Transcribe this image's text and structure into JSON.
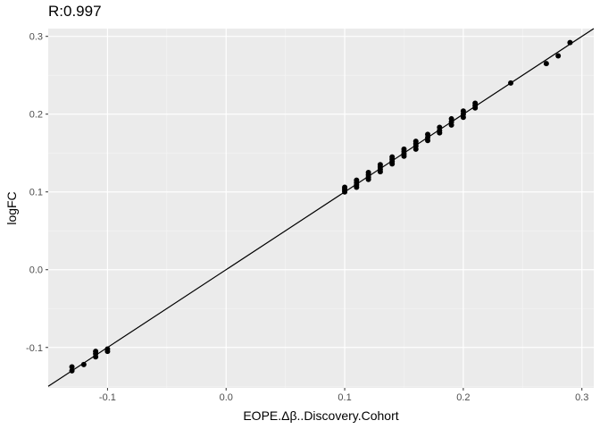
{
  "chart_data": {
    "type": "scatter",
    "title": "R:0.997",
    "xlabel": "EOPE.Δβ..Discovery.Cohort",
    "ylabel": "logFC",
    "xlim": [
      -0.15,
      0.31
    ],
    "ylim": [
      -0.152,
      0.31
    ],
    "x_ticks": [
      -0.1,
      0.0,
      0.1,
      0.2,
      0.3
    ],
    "x_tick_labels": [
      "-0.1",
      "0.0",
      "0.1",
      "0.2",
      "0.3"
    ],
    "y_ticks": [
      -0.1,
      0.0,
      0.1,
      0.2,
      0.3
    ],
    "y_tick_labels": [
      "-0.1",
      "0.0",
      "0.1",
      "0.2",
      "0.3"
    ],
    "grid": true,
    "background": "#ebebeb",
    "point_color": "#000000",
    "fit_line": {
      "slope": 1.0,
      "intercept": 0.0,
      "color": "#000000"
    },
    "points": [
      {
        "x": -0.13,
        "y": -0.125
      },
      {
        "x": -0.13,
        "y": -0.13
      },
      {
        "x": -0.12,
        "y": -0.122
      },
      {
        "x": -0.11,
        "y": -0.105
      },
      {
        "x": -0.11,
        "y": -0.108
      },
      {
        "x": -0.11,
        "y": -0.112
      },
      {
        "x": -0.1,
        "y": -0.102
      },
      {
        "x": -0.1,
        "y": -0.105
      },
      {
        "x": 0.1,
        "y": 0.1
      },
      {
        "x": 0.1,
        "y": 0.102
      },
      {
        "x": 0.1,
        "y": 0.104
      },
      {
        "x": 0.1,
        "y": 0.106
      },
      {
        "x": 0.11,
        "y": 0.106
      },
      {
        "x": 0.11,
        "y": 0.109
      },
      {
        "x": 0.11,
        "y": 0.112
      },
      {
        "x": 0.11,
        "y": 0.115
      },
      {
        "x": 0.12,
        "y": 0.116
      },
      {
        "x": 0.12,
        "y": 0.119
      },
      {
        "x": 0.12,
        "y": 0.122
      },
      {
        "x": 0.12,
        "y": 0.125
      },
      {
        "x": 0.13,
        "y": 0.126
      },
      {
        "x": 0.13,
        "y": 0.129
      },
      {
        "x": 0.13,
        "y": 0.132
      },
      {
        "x": 0.13,
        "y": 0.135
      },
      {
        "x": 0.14,
        "y": 0.136
      },
      {
        "x": 0.14,
        "y": 0.139
      },
      {
        "x": 0.14,
        "y": 0.142
      },
      {
        "x": 0.14,
        "y": 0.145
      },
      {
        "x": 0.15,
        "y": 0.146
      },
      {
        "x": 0.15,
        "y": 0.149
      },
      {
        "x": 0.15,
        "y": 0.152
      },
      {
        "x": 0.15,
        "y": 0.155
      },
      {
        "x": 0.16,
        "y": 0.155
      },
      {
        "x": 0.16,
        "y": 0.159
      },
      {
        "x": 0.16,
        "y": 0.162
      },
      {
        "x": 0.16,
        "y": 0.165
      },
      {
        "x": 0.17,
        "y": 0.166
      },
      {
        "x": 0.17,
        "y": 0.17
      },
      {
        "x": 0.17,
        "y": 0.174
      },
      {
        "x": 0.18,
        "y": 0.176
      },
      {
        "x": 0.18,
        "y": 0.179
      },
      {
        "x": 0.18,
        "y": 0.183
      },
      {
        "x": 0.19,
        "y": 0.186
      },
      {
        "x": 0.19,
        "y": 0.19
      },
      {
        "x": 0.19,
        "y": 0.194
      },
      {
        "x": 0.2,
        "y": 0.196
      },
      {
        "x": 0.2,
        "y": 0.2
      },
      {
        "x": 0.2,
        "y": 0.204
      },
      {
        "x": 0.21,
        "y": 0.208
      },
      {
        "x": 0.21,
        "y": 0.211
      },
      {
        "x": 0.21,
        "y": 0.214
      },
      {
        "x": 0.24,
        "y": 0.24
      },
      {
        "x": 0.27,
        "y": 0.265
      },
      {
        "x": 0.28,
        "y": 0.275
      },
      {
        "x": 0.29,
        "y": 0.292
      }
    ]
  }
}
